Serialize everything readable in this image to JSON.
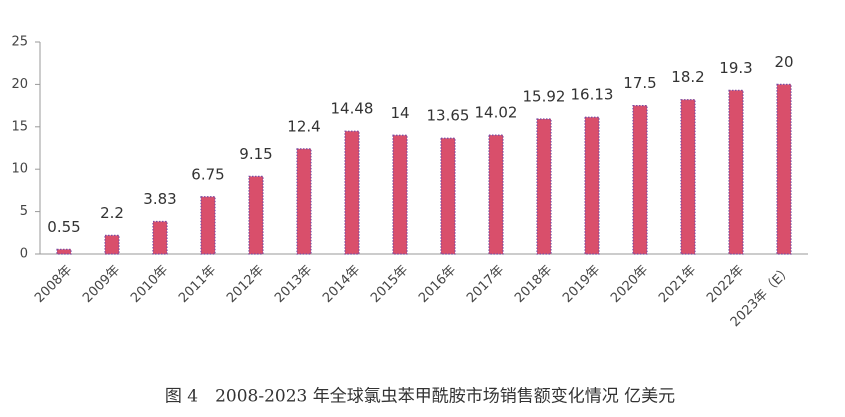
{
  "chart_data": {
    "type": "bar",
    "title": "图 4　2008-2023 年全球氯虫苯甲酰胺市场销售额变化情况  亿美元",
    "categories": [
      "2008年",
      "2009年",
      "2010年",
      "2011年",
      "2012年",
      "2013年",
      "2014年",
      "2015年",
      "2016年",
      "2017年",
      "2018年",
      "2019年",
      "2020年",
      "2021年",
      "2022年",
      "2023年（E）"
    ],
    "values": [
      0.55,
      2.2,
      3.83,
      6.75,
      9.15,
      12.4,
      14.48,
      14,
      13.65,
      14.02,
      15.92,
      16.13,
      17.5,
      18.2,
      19.3,
      20
    ],
    "color": "#d94f6b",
    "ylim": [
      0,
      25
    ],
    "yticks": [
      0,
      5,
      10,
      15,
      20,
      25
    ],
    "grid": false
  }
}
